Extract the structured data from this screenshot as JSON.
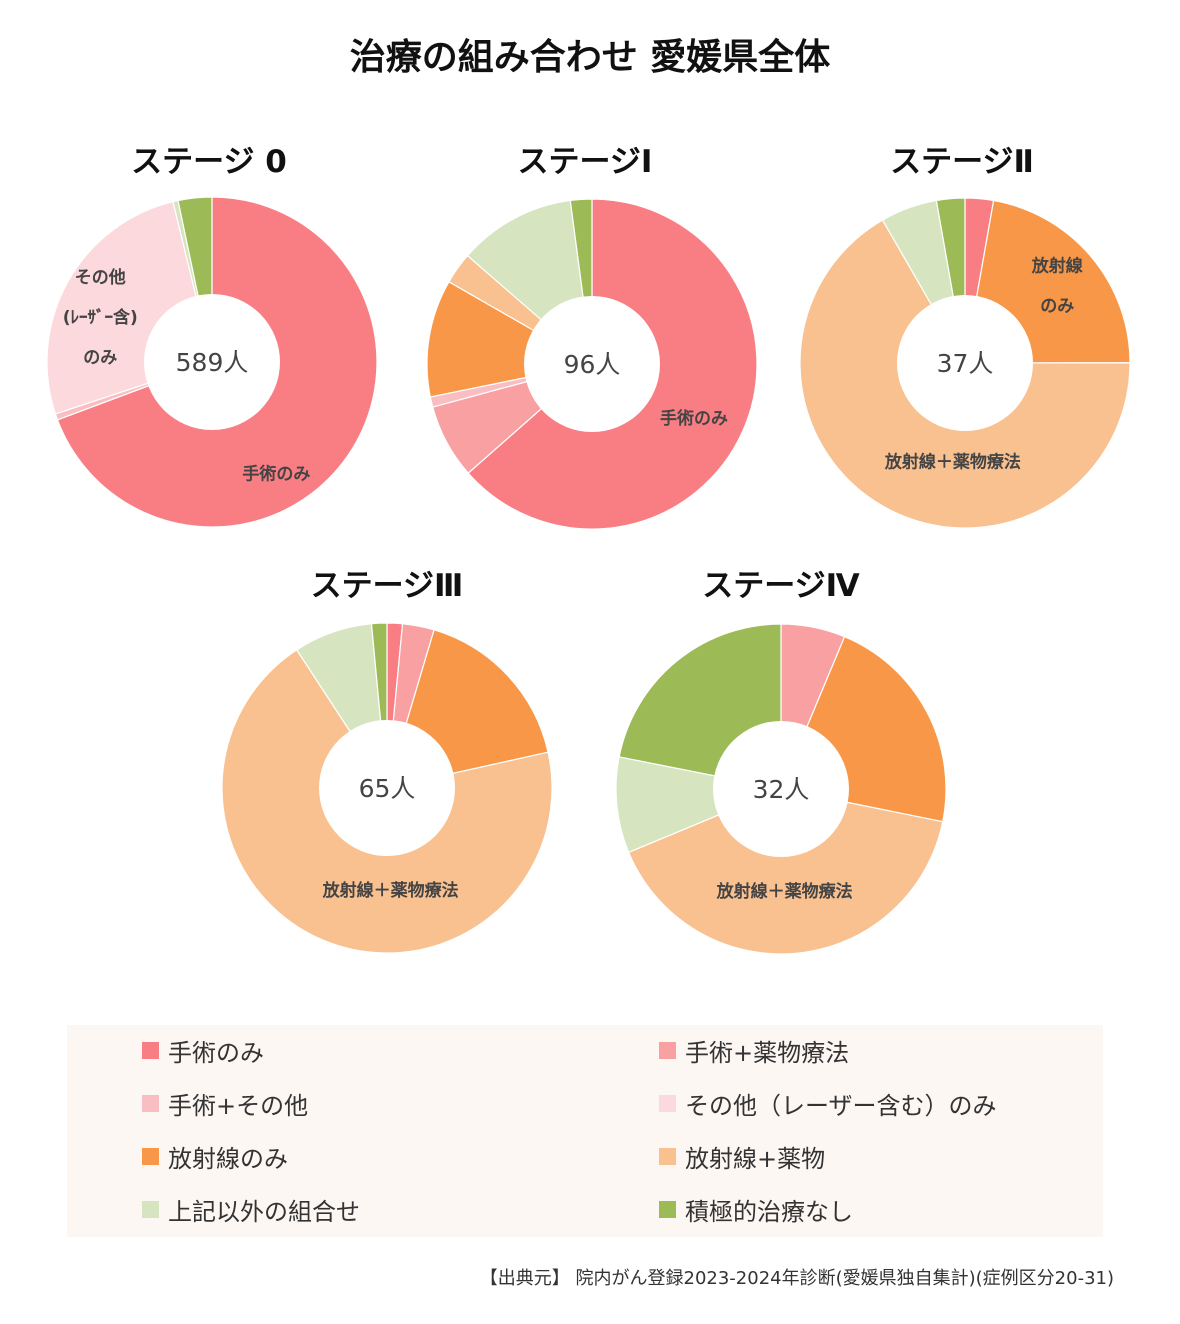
{
  "title": "治療の組み合わせ 愛媛県全体",
  "colors": {
    "surgery_only": "#f87e84",
    "surgery_drug": "#f8a0a2",
    "surgery_other": "#f9bec2",
    "other_laser_only": "#fcd9dc",
    "radiation_only": "#f79747",
    "radiation_drug": "#f9c090",
    "other_combination": "#d6e5c0",
    "no_active_treatment": "#9cbb56"
  },
  "legend": [
    {
      "key": "surgery_only",
      "label": "手術のみ"
    },
    {
      "key": "surgery_drug",
      "label": "手術+薬物療法"
    },
    {
      "key": "surgery_other",
      "label": "手術+その他"
    },
    {
      "key": "other_laser_only",
      "label": "その他（レーザー含む）のみ"
    },
    {
      "key": "radiation_only",
      "label": "放射線のみ"
    },
    {
      "key": "radiation_drug",
      "label": "放射線+薬物"
    },
    {
      "key": "other_combination",
      "label": "上記以外の組合せ"
    },
    {
      "key": "no_active_treatment",
      "label": "積極的治療なし"
    }
  ],
  "source": "【出典元】 院内がん登録2023-2024年診断(愛媛県独自集計)(症例区分20-31)",
  "chart_data": [
    {
      "type": "pie",
      "title": "ステージ 0",
      "total_label": "589人",
      "slices": [
        {
          "key": "surgery_only",
          "value": 69.3
        },
        {
          "key": "surgery_drug",
          "value": 0.0
        },
        {
          "key": "surgery_other",
          "value": 0.6
        },
        {
          "key": "other_laser_only",
          "value": 26.3
        },
        {
          "key": "radiation_only",
          "value": 0.0
        },
        {
          "key": "radiation_drug",
          "value": 0.0
        },
        {
          "key": "other_combination",
          "value": 0.5
        },
        {
          "key": "no_active_treatment",
          "value": 3.3
        }
      ],
      "slice_labels": [
        {
          "key": "surgery_only",
          "lines": [
            "手術のみ"
          ]
        },
        {
          "key": "other_laser_only",
          "lines": [
            "その他",
            "(ﾚｰｻﾞｰ含)",
            "のみ"
          ]
        }
      ]
    },
    {
      "type": "pie",
      "title": "ステージⅠ",
      "total_label": "96人",
      "slices": [
        {
          "key": "surgery_only",
          "value": 63.5
        },
        {
          "key": "surgery_drug",
          "value": 7.3
        },
        {
          "key": "surgery_other",
          "value": 1.0
        },
        {
          "key": "other_laser_only",
          "value": 0.0
        },
        {
          "key": "radiation_only",
          "value": 11.5
        },
        {
          "key": "radiation_drug",
          "value": 3.1
        },
        {
          "key": "other_combination",
          "value": 11.5
        },
        {
          "key": "no_active_treatment",
          "value": 2.1
        }
      ],
      "slice_labels": [
        {
          "key": "surgery_only",
          "lines": [
            "手術のみ"
          ]
        }
      ]
    },
    {
      "type": "pie",
      "title": "ステージⅡ",
      "total_label": "37人",
      "slices": [
        {
          "key": "surgery_only",
          "value": 2.7
        },
        {
          "key": "surgery_drug",
          "value": 0.0
        },
        {
          "key": "surgery_other",
          "value": 0.0
        },
        {
          "key": "other_laser_only",
          "value": 0.0
        },
        {
          "key": "radiation_only",
          "value": 21.6
        },
        {
          "key": "radiation_drug",
          "value": 64.9
        },
        {
          "key": "other_combination",
          "value": 5.4
        },
        {
          "key": "no_active_treatment",
          "value": 2.7
        }
      ],
      "slice_labels": [
        {
          "key": "radiation_only",
          "lines": [
            "放射線",
            "のみ"
          ]
        },
        {
          "key": "radiation_drug",
          "lines": [
            "放射線＋薬物療法"
          ]
        }
      ]
    },
    {
      "type": "pie",
      "title": "ステージⅢ",
      "total_label": "65人",
      "slices": [
        {
          "key": "surgery_only",
          "value": 1.5
        },
        {
          "key": "surgery_drug",
          "value": 3.1
        },
        {
          "key": "surgery_other",
          "value": 0.0
        },
        {
          "key": "other_laser_only",
          "value": 0.0
        },
        {
          "key": "radiation_only",
          "value": 16.9
        },
        {
          "key": "radiation_drug",
          "value": 69.2
        },
        {
          "key": "other_combination",
          "value": 7.7
        },
        {
          "key": "no_active_treatment",
          "value": 1.5
        }
      ],
      "slice_labels": [
        {
          "key": "radiation_drug",
          "lines": [
            "放射線＋薬物療法"
          ]
        }
      ]
    },
    {
      "type": "pie",
      "title": "ステージⅣ",
      "total_label": "32人",
      "slices": [
        {
          "key": "surgery_only",
          "value": 0.0
        },
        {
          "key": "surgery_drug",
          "value": 6.3
        },
        {
          "key": "surgery_other",
          "value": 0.0
        },
        {
          "key": "other_laser_only",
          "value": 0.0
        },
        {
          "key": "radiation_only",
          "value": 21.9
        },
        {
          "key": "radiation_drug",
          "value": 40.6
        },
        {
          "key": "other_combination",
          "value": 9.4
        },
        {
          "key": "no_active_treatment",
          "value": 21.9
        }
      ],
      "slice_labels": [
        {
          "key": "radiation_drug",
          "lines": [
            "放射線＋薬物療法"
          ]
        }
      ]
    }
  ]
}
